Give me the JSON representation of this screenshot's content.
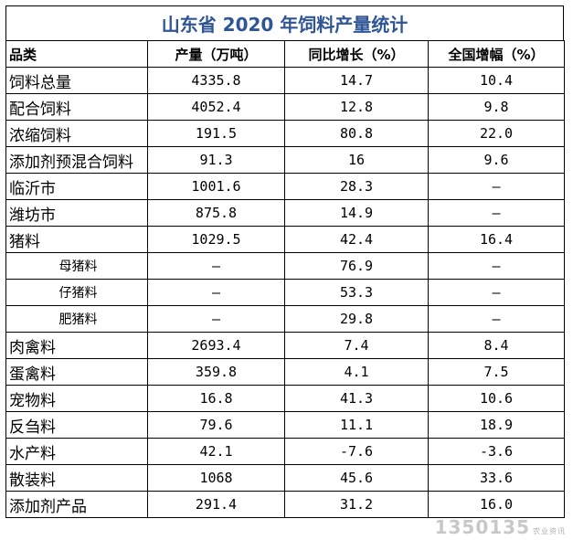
{
  "title": "山东省 2020 年饲料产量统计",
  "headers": [
    "品类",
    "产量（万吨）",
    "同比增长（%）",
    "全国增幅（%）"
  ],
  "rows": [
    {
      "name": "饲料总量",
      "sub": false,
      "output": "4335.8",
      "yoy": "14.7",
      "national": "10.4"
    },
    {
      "name": "配合饲料",
      "sub": false,
      "output": "4052.4",
      "yoy": "12.8",
      "national": "9.8"
    },
    {
      "name": "浓缩饲料",
      "sub": false,
      "output": "191.5",
      "yoy": "80.8",
      "national": "22.0"
    },
    {
      "name": "添加剂预混合饲料",
      "sub": false,
      "output": "91.3",
      "yoy": "16",
      "national": "9.6"
    },
    {
      "name": "临沂市",
      "sub": false,
      "output": "1001.6",
      "yoy": "28.3",
      "national": "–"
    },
    {
      "name": "潍坊市",
      "sub": false,
      "output": "875.8",
      "yoy": "14.9",
      "national": "–"
    },
    {
      "name": "猪料",
      "sub": false,
      "output": "1029.5",
      "yoy": "42.4",
      "national": "16.4"
    },
    {
      "name": "母猪料",
      "sub": true,
      "output": "–",
      "yoy": "76.9",
      "national": "–"
    },
    {
      "name": "仔猪料",
      "sub": true,
      "output": "–",
      "yoy": "53.3",
      "national": "–"
    },
    {
      "name": "肥猪料",
      "sub": true,
      "output": "–",
      "yoy": "29.8",
      "national": "–"
    },
    {
      "name": "肉禽料",
      "sub": false,
      "output": "2693.4",
      "yoy": "7.4",
      "national": "8.4"
    },
    {
      "name": "蛋禽料",
      "sub": false,
      "output": "359.8",
      "yoy": "4.1",
      "national": "7.5"
    },
    {
      "name": "宠物料",
      "sub": false,
      "output": "16.8",
      "yoy": "41.3",
      "national": "10.6"
    },
    {
      "name": "反刍料",
      "sub": false,
      "output": "79.6",
      "yoy": "11.1",
      "national": "18.9"
    },
    {
      "name": "水产料",
      "sub": false,
      "output": "42.1",
      "yoy": "-7.6",
      "national": "-3.6"
    },
    {
      "name": "散装料",
      "sub": false,
      "output": "1068",
      "yoy": "45.6",
      "national": "33.6"
    },
    {
      "name": "添加剂产品",
      "sub": false,
      "output": "291.4",
      "yoy": "31.2",
      "national": "16.0"
    }
  ],
  "watermark": {
    "main": "1350135",
    "small": "农业资讯"
  }
}
